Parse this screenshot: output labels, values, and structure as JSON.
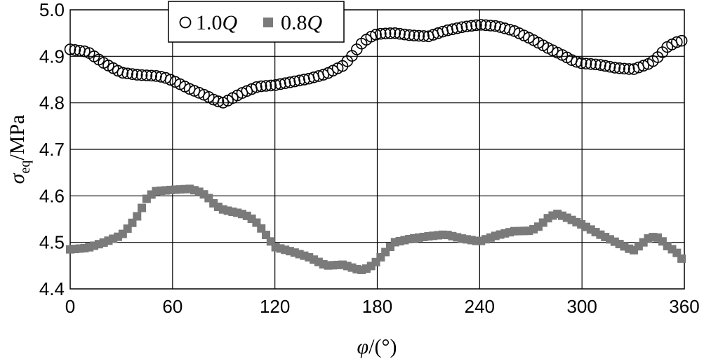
{
  "chart_data": {
    "type": "scatter",
    "xlabel_symbol": "φ",
    "xlabel_unit": "/(°)",
    "ylabel_symbol": "σ",
    "ylabel_subscript": "eq",
    "ylabel_unit": "/MPa",
    "xlim": [
      0,
      360
    ],
    "ylim": [
      4.4,
      5.0
    ],
    "x_ticks": [
      "0",
      "60",
      "120",
      "180",
      "240",
      "300",
      "360"
    ],
    "y_ticks": [
      "4.4",
      "4.5",
      "4.6",
      "4.7",
      "4.8",
      "4.9",
      "5.0"
    ],
    "grid": true,
    "legend_position": "top-center",
    "series": [
      {
        "name_prefix": "1.0",
        "name_italic": "Q",
        "marker": "open-circle",
        "color": "#000000",
        "points": [
          [
            0,
            4.915
          ],
          [
            10,
            4.91
          ],
          [
            20,
            4.885
          ],
          [
            30,
            4.865
          ],
          [
            40,
            4.86
          ],
          [
            50,
            4.858
          ],
          [
            55,
            4.855
          ],
          [
            60,
            4.848
          ],
          [
            70,
            4.83
          ],
          [
            80,
            4.815
          ],
          [
            85,
            4.805
          ],
          [
            90,
            4.8
          ],
          [
            95,
            4.81
          ],
          [
            100,
            4.82
          ],
          [
            110,
            4.835
          ],
          [
            120,
            4.838
          ],
          [
            130,
            4.845
          ],
          [
            140,
            4.852
          ],
          [
            150,
            4.862
          ],
          [
            160,
            4.88
          ],
          [
            165,
            4.9
          ],
          [
            170,
            4.925
          ],
          [
            175,
            4.94
          ],
          [
            180,
            4.948
          ],
          [
            190,
            4.95
          ],
          [
            200,
            4.945
          ],
          [
            210,
            4.943
          ],
          [
            220,
            4.955
          ],
          [
            230,
            4.963
          ],
          [
            240,
            4.968
          ],
          [
            250,
            4.965
          ],
          [
            260,
            4.955
          ],
          [
            270,
            4.938
          ],
          [
            280,
            4.918
          ],
          [
            290,
            4.9
          ],
          [
            295,
            4.89
          ],
          [
            300,
            4.885
          ],
          [
            310,
            4.882
          ],
          [
            320,
            4.875
          ],
          [
            330,
            4.872
          ],
          [
            340,
            4.885
          ],
          [
            345,
            4.9
          ],
          [
            350,
            4.92
          ],
          [
            355,
            4.93
          ],
          [
            360,
            4.935
          ]
        ]
      },
      {
        "name_prefix": "0.8",
        "name_italic": "Q",
        "marker": "filled-square",
        "color": "#7a7a7a",
        "points": [
          [
            0,
            4.485
          ],
          [
            10,
            4.488
          ],
          [
            20,
            4.5
          ],
          [
            30,
            4.515
          ],
          [
            35,
            4.535
          ],
          [
            40,
            4.56
          ],
          [
            45,
            4.595
          ],
          [
            50,
            4.61
          ],
          [
            60,
            4.613
          ],
          [
            70,
            4.615
          ],
          [
            75,
            4.61
          ],
          [
            80,
            4.6
          ],
          [
            85,
            4.58
          ],
          [
            90,
            4.57
          ],
          [
            100,
            4.562
          ],
          [
            105,
            4.555
          ],
          [
            110,
            4.54
          ],
          [
            115,
            4.515
          ],
          [
            120,
            4.49
          ],
          [
            130,
            4.48
          ],
          [
            140,
            4.468
          ],
          [
            150,
            4.45
          ],
          [
            160,
            4.452
          ],
          [
            170,
            4.44
          ],
          [
            175,
            4.445
          ],
          [
            180,
            4.46
          ],
          [
            185,
            4.48
          ],
          [
            190,
            4.5
          ],
          [
            200,
            4.508
          ],
          [
            210,
            4.513
          ],
          [
            220,
            4.517
          ],
          [
            230,
            4.508
          ],
          [
            240,
            4.502
          ],
          [
            250,
            4.515
          ],
          [
            260,
            4.524
          ],
          [
            270,
            4.525
          ],
          [
            275,
            4.535
          ],
          [
            280,
            4.552
          ],
          [
            285,
            4.562
          ],
          [
            290,
            4.555
          ],
          [
            300,
            4.538
          ],
          [
            310,
            4.518
          ],
          [
            320,
            4.5
          ],
          [
            330,
            4.482
          ],
          [
            340,
            4.512
          ],
          [
            345,
            4.51
          ],
          [
            350,
            4.492
          ],
          [
            355,
            4.48
          ],
          [
            360,
            4.458
          ]
        ]
      }
    ]
  }
}
